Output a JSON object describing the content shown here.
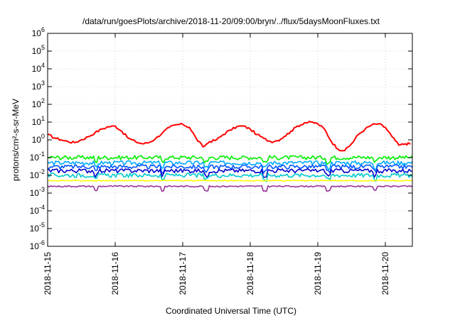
{
  "chart_data": {
    "type": "line",
    "title": "/data/run/goesPlots/archive/2018-11-20/09:00/bryn/../flux/5daysMoonFluxes.txt",
    "xlabel": "Coordinated Universal Time (UTC)",
    "ylabel": "protons/cm²-s-sr-MeV",
    "y_scale": "log",
    "ylim_exponents": [
      -6,
      6
    ],
    "y_tick_exponents": [
      -6,
      -5,
      -4,
      -3,
      -2,
      -1,
      0,
      1,
      2,
      3,
      4,
      5,
      6
    ],
    "x_ticks": [
      "2018-11-15",
      "2018-11-16",
      "2018-11-17",
      "2018-11-18",
      "2018-11-19",
      "2018-11-20"
    ],
    "xlim": [
      "2018-11-15T00:00",
      "2018-11-20T09:00"
    ],
    "grid": true,
    "legend": "none",
    "series": [
      {
        "color": "#ff0000",
        "x_days": [
          0.0,
          0.1,
          0.2,
          0.3,
          0.4,
          0.5,
          0.6,
          0.7,
          0.8,
          0.9,
          1.0,
          1.1,
          1.2,
          1.3,
          1.4,
          1.5,
          1.6,
          1.7,
          1.8,
          1.9,
          2.0,
          2.1,
          2.2,
          2.3,
          2.4,
          2.5,
          2.6,
          2.7,
          2.8,
          2.9,
          3.0,
          3.1,
          3.2,
          3.3,
          3.4,
          3.5,
          3.6,
          3.7,
          3.8,
          3.9,
          4.0,
          4.1,
          4.2,
          4.3,
          4.4,
          4.5,
          4.6,
          4.7,
          4.8,
          4.9,
          5.0,
          5.1,
          5.2,
          5.3,
          5.375
        ],
        "y": [
          2.0,
          1.3,
          1.0,
          0.8,
          0.7,
          1.0,
          1.5,
          2.5,
          4.0,
          5.5,
          6.0,
          3.0,
          1.2,
          0.8,
          0.6,
          0.7,
          1.2,
          2.5,
          5.0,
          7.0,
          7.5,
          5.0,
          1.2,
          0.4,
          0.8,
          1.0,
          2.0,
          3.5,
          5.5,
          6.0,
          4.0,
          2.0,
          1.2,
          0.8,
          0.9,
          1.5,
          3.0,
          6.0,
          9.0,
          10.0,
          8.0,
          4.0,
          0.8,
          0.3,
          0.25,
          0.6,
          2.0,
          4.0,
          7.0,
          8.0,
          5.0,
          1.5,
          0.5,
          0.6,
          0.6
        ]
      },
      {
        "color": "#00ee00",
        "base": 0.1
      },
      {
        "color": "#00aaff",
        "base": 0.05
      },
      {
        "color": "#0055ff",
        "base": 0.03
      },
      {
        "color": "#0000cc",
        "base": 0.018
      },
      {
        "color": "#00cccc",
        "base": 0.01
      },
      {
        "color": "#ffff00",
        "base": 0.005
      },
      {
        "color": "#993399",
        "base": 0.0024
      }
    ]
  }
}
